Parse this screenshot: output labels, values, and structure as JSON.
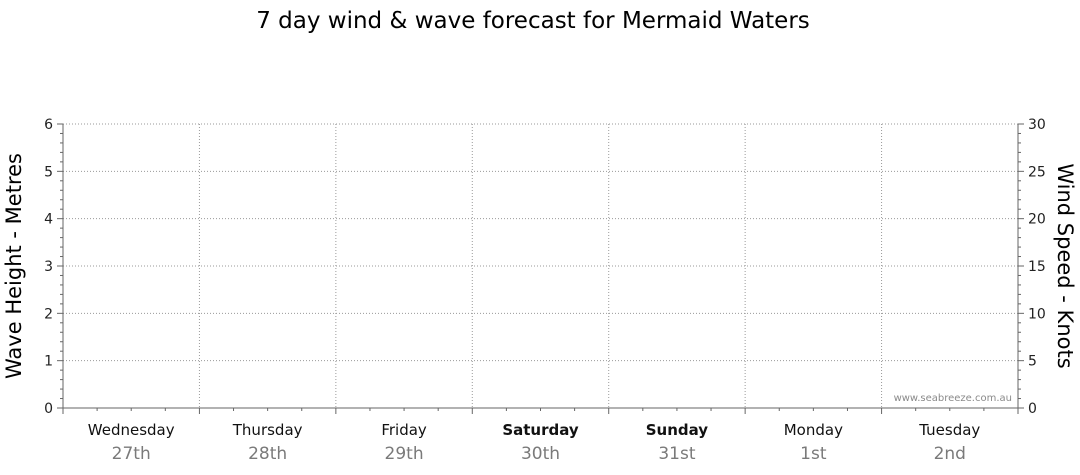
{
  "chart_data": {
    "type": "line",
    "title": "7 day wind & wave forecast for Mermaid Waters",
    "y_left": {
      "label": "Wave Height - Metres",
      "range": [
        0,
        6
      ],
      "ticks": [
        0,
        1,
        2,
        3,
        4,
        5,
        6
      ]
    },
    "y_right": {
      "label": "Wind Speed - Knots",
      "range": [
        0,
        30
      ],
      "ticks": [
        0,
        5,
        10,
        15,
        20,
        25,
        30
      ]
    },
    "days": [
      {
        "day": "Wednesday",
        "date": "27th",
        "bold": false
      },
      {
        "day": "Thursday",
        "date": "28th",
        "bold": false
      },
      {
        "day": "Friday",
        "date": "29th",
        "bold": false
      },
      {
        "day": "Saturday",
        "date": "30th",
        "bold": true
      },
      {
        "day": "Sunday",
        "date": "31st",
        "bold": true
      },
      {
        "day": "Monday",
        "date": "1st",
        "bold": false
      },
      {
        "day": "Tuesday",
        "date": "2nd",
        "bold": false
      }
    ],
    "grid": true,
    "series": []
  },
  "watermark": "www.seabreeze.com.au",
  "colors": {
    "grid": "#9a9a9a",
    "axis": "#666666",
    "date_text": "#7a7a7a"
  }
}
